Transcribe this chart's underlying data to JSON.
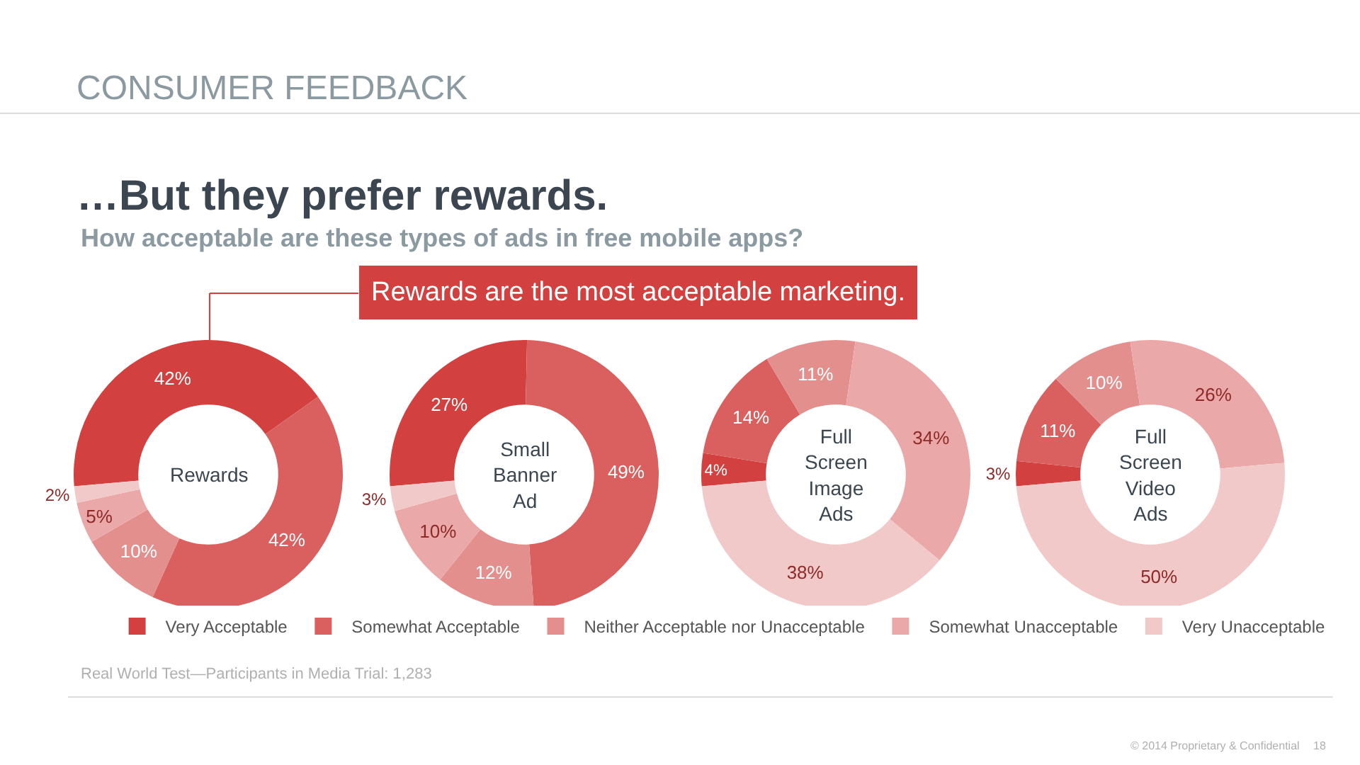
{
  "chart_data": {
    "type": "donut",
    "title": "…But they prefer rewards.",
    "subtitle": "How acceptable are these types of ads in free mobile apps?",
    "categories": [
      "Very Acceptable",
      "Somewhat Acceptable",
      "Neither Acceptable nor Unacceptable",
      "Somewhat Unacceptable",
      "Very Unacceptable"
    ],
    "colors": [
      "#d2413f",
      "#d9605e",
      "#e38f8d",
      "#eaa9a8",
      "#f1c9c8"
    ],
    "series": [
      {
        "name": "Rewards",
        "values": [
          42,
          42,
          10,
          5,
          2
        ],
        "value_labels": [
          "42%",
          "42%",
          "10%",
          "5%",
          "2%"
        ]
      },
      {
        "name": "Small Banner Ad",
        "values": [
          27,
          49,
          12,
          10,
          3
        ],
        "value_labels": [
          "27%",
          "49%",
          "12%",
          "10%",
          "3%"
        ]
      },
      {
        "name": "Full Screen Image Ads",
        "values": [
          4,
          14,
          11,
          34,
          38
        ],
        "value_labels": [
          "4%",
          "14%",
          "11%",
          "34%",
          "38%"
        ]
      },
      {
        "name": "Full Screen Video Ads",
        "values": [
          3,
          11,
          10,
          26,
          50
        ],
        "value_labels": [
          "3%",
          "11%",
          "10%",
          "26%",
          "50%"
        ]
      }
    ],
    "legend": "bottom",
    "annotations": [
      "CONSUMER FEEDBACK",
      "Rewards are the most acceptable marketing.",
      "Real World Test—Participants in Media Trial: 1,283",
      "© 2014 Proprietary & Confidential",
      "18"
    ]
  }
}
